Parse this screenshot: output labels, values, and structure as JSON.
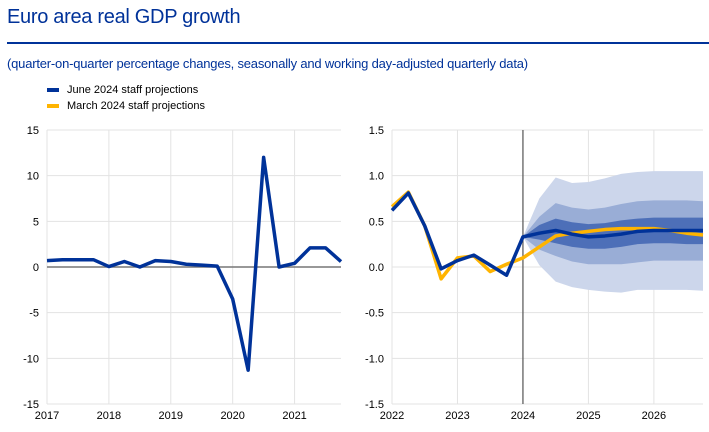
{
  "title": "Euro area real GDP growth",
  "subtitle": "(quarter-on-quarter percentage changes, seasonally and working day-adjusted quarterly data)",
  "legend": [
    {
      "label": "June 2024 staff projections",
      "color": "#003299"
    },
    {
      "label": "March 2024 staff projections",
      "color": "#FFB400"
    }
  ],
  "chart_data": [
    {
      "type": "line",
      "x_start": 2017,
      "x_end": 2021.75,
      "xticks": [
        "2017",
        "2018",
        "2019",
        "2020",
        "2021"
      ],
      "yticks": [
        "15",
        "10",
        "5",
        "0",
        "-5",
        "-10",
        "-15"
      ],
      "ylim": [
        -15,
        15
      ],
      "grid": true,
      "x": [
        "2017Q1",
        "2017Q2",
        "2017Q3",
        "2017Q4",
        "2018Q1",
        "2018Q2",
        "2018Q3",
        "2018Q4",
        "2019Q1",
        "2019Q2",
        "2019Q3",
        "2019Q4",
        "2020Q1",
        "2020Q2",
        "2020Q3",
        "2020Q4",
        "2021Q1",
        "2021Q2",
        "2021Q3",
        "2021Q4"
      ],
      "series": [
        {
          "name": "June 2024 staff projections",
          "color": "#003299",
          "values": [
            0.7,
            0.8,
            0.8,
            0.8,
            0.05,
            0.6,
            0.0,
            0.7,
            0.6,
            0.3,
            0.2,
            0.1,
            -3.5,
            -11.3,
            12.0,
            0.0,
            0.4,
            2.1,
            2.1,
            0.6
          ]
        }
      ]
    },
    {
      "type": "line",
      "x_start": 2022,
      "x_end": 2026.75,
      "xticks": [
        "2022",
        "2023",
        "2024",
        "2025",
        "2026"
      ],
      "yticks": [
        "1.5",
        "1.0",
        "0.5",
        "0.0",
        "-0.5",
        "-1.0",
        "-1.5"
      ],
      "ylim": [
        -1.5,
        1.5
      ],
      "grid": true,
      "projection_start": "2024",
      "x": [
        "2022Q1",
        "2022Q2",
        "2022Q3",
        "2022Q4",
        "2023Q1",
        "2023Q2",
        "2023Q3",
        "2023Q4",
        "2024Q1",
        "2024Q2",
        "2024Q3",
        "2024Q4",
        "2025Q1",
        "2025Q2",
        "2025Q3",
        "2025Q4",
        "2026Q1",
        "2026Q2",
        "2026Q3",
        "2026Q4"
      ],
      "series": [
        {
          "name": "March 2024 staff projections",
          "color": "#FFB400",
          "values": [
            0.66,
            0.82,
            0.45,
            -0.13,
            0.1,
            0.12,
            -0.05,
            0.03,
            0.1,
            0.22,
            0.34,
            0.37,
            0.39,
            0.41,
            0.42,
            0.42,
            0.42,
            0.4,
            0.37,
            0.35
          ]
        },
        {
          "name": "June 2024 staff projections",
          "color": "#003299",
          "values": [
            0.62,
            0.81,
            0.45,
            -0.02,
            0.07,
            0.13,
            0.02,
            -0.09,
            0.33,
            0.37,
            0.4,
            0.36,
            0.33,
            0.34,
            0.36,
            0.39,
            0.4,
            0.4,
            0.4,
            0.4
          ]
        }
      ],
      "uncertainty_bands": {
        "x": [
          "2024Q1",
          "2024Q2",
          "2024Q3",
          "2024Q4",
          "2025Q1",
          "2025Q2",
          "2025Q3",
          "2025Q4",
          "2026Q1",
          "2026Q2",
          "2026Q3",
          "2026Q4"
        ],
        "bands": [
          {
            "color": "#CCD6EB",
            "upper": [
              0.33,
              0.75,
              0.98,
              0.92,
              0.93,
              0.97,
              1.02,
              1.04,
              1.05,
              1.05,
              1.05,
              1.05
            ],
            "lower": [
              0.33,
              0.02,
              -0.16,
              -0.22,
              -0.25,
              -0.27,
              -0.28,
              -0.25,
              -0.25,
              -0.25,
              -0.25,
              -0.26
            ]
          },
          {
            "color": "#99ADD6",
            "upper": [
              0.33,
              0.55,
              0.7,
              0.65,
              0.63,
              0.65,
              0.69,
              0.72,
              0.73,
              0.73,
              0.73,
              0.72
            ],
            "lower": [
              0.33,
              0.19,
              0.12,
              0.06,
              0.03,
              0.03,
              0.03,
              0.05,
              0.07,
              0.07,
              0.07,
              0.07
            ]
          },
          {
            "color": "#4D6FB8",
            "upper": [
              0.33,
              0.46,
              0.53,
              0.49,
              0.47,
              0.48,
              0.51,
              0.53,
              0.54,
              0.54,
              0.54,
              0.54
            ],
            "lower": [
              0.33,
              0.3,
              0.26,
              0.22,
              0.2,
              0.2,
              0.22,
              0.25,
              0.26,
              0.26,
              0.25,
              0.25
            ]
          }
        ]
      }
    }
  ]
}
